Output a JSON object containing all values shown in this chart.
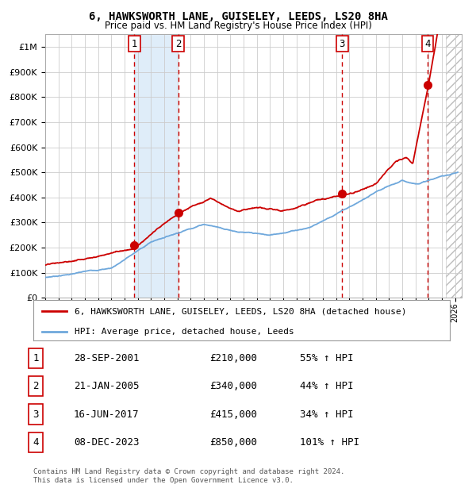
{
  "title1": "6, HAWKSWORTH LANE, GUISELEY, LEEDS, LS20 8HA",
  "title2": "Price paid vs. HM Land Registry's House Price Index (HPI)",
  "sale_dates": [
    2001.747,
    2005.055,
    2017.458,
    2023.923
  ],
  "sale_prices": [
    210000,
    340000,
    415000,
    850000
  ],
  "sale_labels": [
    "1",
    "2",
    "3",
    "4"
  ],
  "hpi_color": "#6fa8dc",
  "sale_color": "#cc0000",
  "legend_entries": [
    "6, HAWKSWORTH LANE, GUISELEY, LEEDS, LS20 8HA (detached house)",
    "HPI: Average price, detached house, Leeds"
  ],
  "table_rows": [
    [
      "1",
      "28-SEP-2001",
      "£210,000",
      "55% ↑ HPI"
    ],
    [
      "2",
      "21-JAN-2005",
      "£340,000",
      "44% ↑ HPI"
    ],
    [
      "3",
      "16-JUN-2017",
      "£415,000",
      "34% ↑ HPI"
    ],
    [
      "4",
      "08-DEC-2023",
      "£850,000",
      "101% ↑ HPI"
    ]
  ],
  "footnote": "Contains HM Land Registry data © Crown copyright and database right 2024.\nThis data is licensed under the Open Government Licence v3.0.",
  "ylim": [
    0,
    1050000
  ],
  "xlim_start": 1995.0,
  "xlim_end": 2026.5,
  "bg_color": "#ffffff",
  "grid_color": "#cccccc"
}
